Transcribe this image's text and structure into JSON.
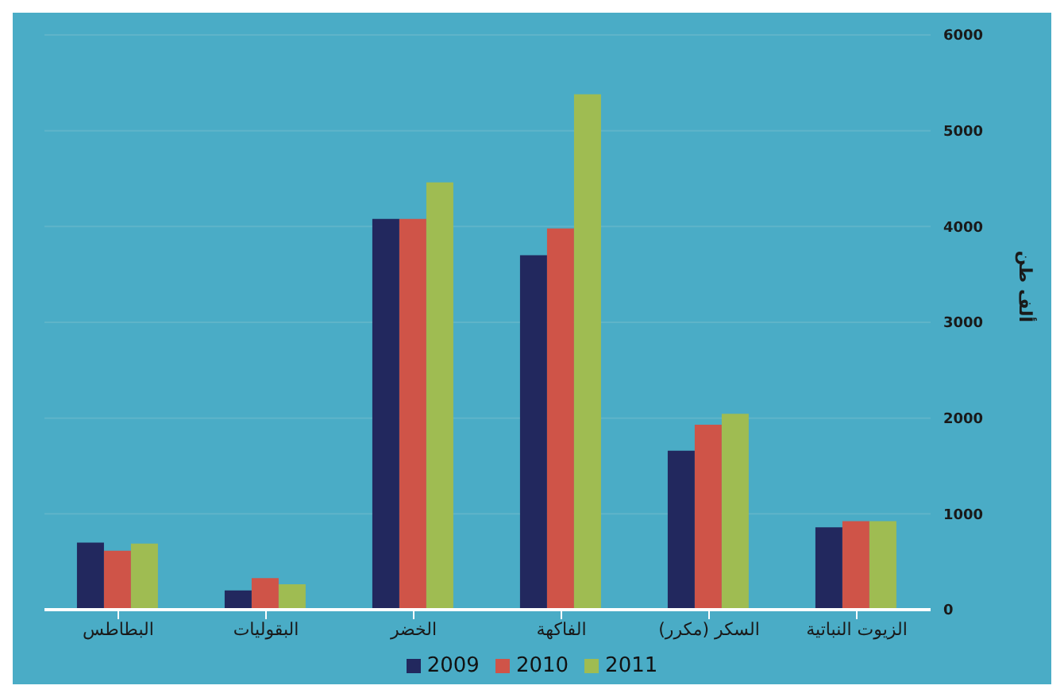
{
  "chart_data": {
    "type": "bar",
    "ylabel": "ألف طن",
    "categories": [
      "البطاطس",
      "البقوليات",
      "الخضر",
      "الفاكهة",
      "السكر (مكرر)",
      "الزيوت النباتية"
    ],
    "series": [
      {
        "name": "2009",
        "color": "#22285e",
        "values": [
          700,
          200,
          4080,
          3700,
          1660,
          860
        ]
      },
      {
        "name": "2010",
        "color": "#cf5448",
        "values": [
          615,
          330,
          4080,
          3980,
          1930,
          925
        ]
      },
      {
        "name": "2011",
        "color": "#9fbc52",
        "values": [
          690,
          265,
          4460,
          5380,
          2045,
          925
        ]
      }
    ],
    "ylim": [
      0,
      6000
    ],
    "yticks": [
      0,
      1000,
      2000,
      3000,
      4000,
      5000,
      6000
    ],
    "grid": "y",
    "legend": "bottom"
  }
}
